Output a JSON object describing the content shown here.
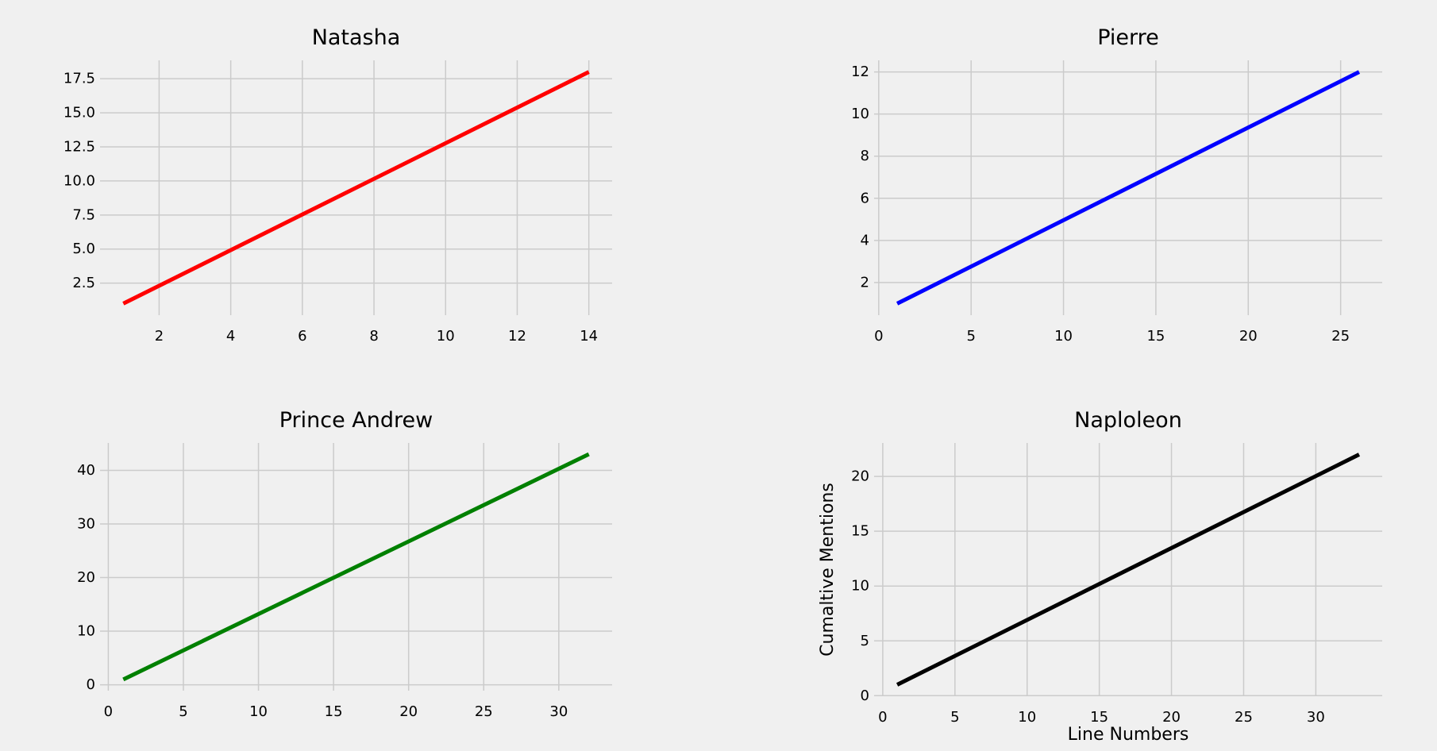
{
  "chart_data": [
    {
      "type": "line",
      "title": "Natasha",
      "xlabel": "",
      "ylabel": "",
      "color": "#ff0000",
      "x": [
        1,
        14
      ],
      "y": [
        1,
        18
      ],
      "xlim": [
        0.35,
        14.65
      ],
      "ylim": [
        0.15,
        18.85
      ],
      "xticks": [
        2,
        4,
        6,
        8,
        10,
        12,
        14
      ],
      "xtick_labels": [
        "2",
        "4",
        "6",
        "8",
        "10",
        "12",
        "14"
      ],
      "yticks": [
        2.5,
        5.0,
        7.5,
        10.0,
        12.5,
        15.0,
        17.5
      ],
      "ytick_labels": [
        "2.5",
        "5.0",
        "7.5",
        "10.0",
        "12.5",
        "15.0",
        "17.5"
      ],
      "grid": true
    },
    {
      "type": "line",
      "title": "Pierre",
      "xlabel": "",
      "ylabel": "",
      "color": "#0000ff",
      "x": [
        1,
        26
      ],
      "y": [
        1,
        12
      ],
      "xlim": [
        -0.25,
        27.25
      ],
      "ylim": [
        0.45,
        12.55
      ],
      "xticks": [
        0,
        5,
        10,
        15,
        20,
        25
      ],
      "xtick_labels": [
        "0",
        "5",
        "10",
        "15",
        "20",
        "25"
      ],
      "yticks": [
        2,
        4,
        6,
        8,
        10,
        12
      ],
      "ytick_labels": [
        "2",
        "4",
        "6",
        "8",
        "10",
        "12"
      ],
      "grid": true
    },
    {
      "type": "line",
      "title": "Prince Andrew",
      "xlabel": "",
      "ylabel": "",
      "color": "#008000",
      "x": [
        1,
        32
      ],
      "y": [
        1,
        43
      ],
      "xlim": [
        -0.55,
        33.55
      ],
      "ylim": [
        -1.1,
        45.1
      ],
      "xticks": [
        0,
        5,
        10,
        15,
        20,
        25,
        30
      ],
      "xtick_labels": [
        "0",
        "5",
        "10",
        "15",
        "20",
        "25",
        "30"
      ],
      "yticks": [
        0,
        10,
        20,
        30,
        40
      ],
      "ytick_labels": [
        "0",
        "10",
        "20",
        "30",
        "40"
      ],
      "grid": true
    },
    {
      "type": "line",
      "title": "Naploleon",
      "xlabel": "Line Numbers",
      "ylabel": "Cumaltive Mentions",
      "color": "#000000",
      "x": [
        1,
        33
      ],
      "y": [
        1,
        22
      ],
      "xlim": [
        -0.6,
        34.6
      ],
      "ylim": [
        -0.05,
        23.05
      ],
      "xticks": [
        0,
        5,
        10,
        15,
        20,
        25,
        30
      ],
      "xtick_labels": [
        "0",
        "5",
        "10",
        "15",
        "20",
        "25",
        "30"
      ],
      "yticks": [
        0,
        5,
        10,
        15,
        20
      ],
      "ytick_labels": [
        "0",
        "5",
        "10",
        "15",
        "20"
      ],
      "grid": true
    }
  ]
}
